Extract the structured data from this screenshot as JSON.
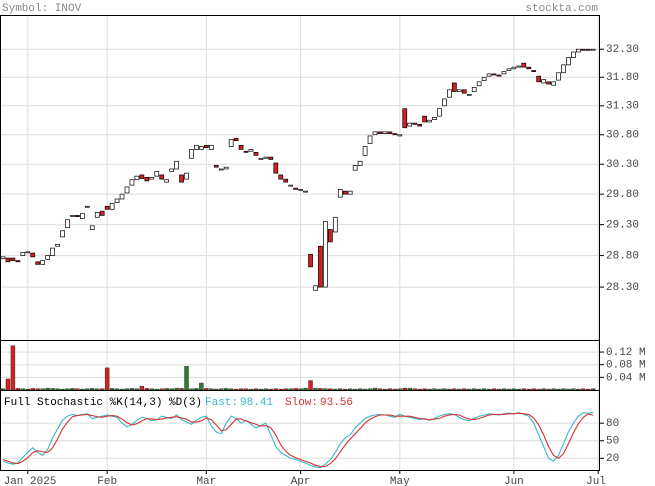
{
  "chart_data": [
    {
      "type": "candlestick",
      "title": "Symbol: INOV",
      "source": "stockta.com",
      "open": [
        28.75,
        28.76,
        28.76,
        28.72,
        28.8,
        28.85,
        28.84,
        28.7,
        28.66,
        28.74,
        28.8,
        28.95,
        29.1,
        29.25,
        29.45,
        29.45,
        29.4,
        29.6,
        29.22,
        29.42,
        29.52,
        29.6,
        29.55,
        29.66,
        29.72,
        29.82,
        29.95,
        30.04,
        30.12,
        30.08,
        30.05,
        30.1,
        30.12,
        30.0,
        30.18,
        30.22,
        30.12,
        30.05,
        30.4,
        30.55,
        30.55,
        30.62,
        30.55,
        30.28,
        30.22,
        30.22,
        30.6,
        30.74,
        30.62,
        30.52,
        30.52,
        30.5,
        30.38,
        30.4,
        30.42,
        30.32,
        30.12,
        30.05,
        29.95,
        29.9,
        29.88,
        29.85,
        28.82,
        28.25,
        28.95,
        28.3,
        29.22,
        29.18,
        29.75,
        29.85,
        29.8,
        30.2,
        30.28,
        30.45,
        30.65,
        30.8,
        30.85,
        30.82,
        30.85,
        30.82,
        30.78,
        31.25,
        30.95,
        31.0,
        30.98,
        31.12,
        31.02,
        31.06,
        31.12,
        31.3,
        31.45,
        31.7,
        31.55,
        31.58,
        31.5,
        31.55,
        31.65,
        31.74,
        31.82,
        31.86,
        31.84,
        31.86,
        31.92,
        31.95,
        31.98,
        32.05,
        31.98,
        31.92,
        31.82,
        31.7,
        31.72,
        31.66,
        31.75,
        31.88,
        32.02,
        32.15,
        32.25,
        32.3,
        32.3,
        32.3
      ],
      "close": [
        28.78,
        28.7,
        28.72,
        28.7,
        28.85,
        28.86,
        28.78,
        28.66,
        28.72,
        28.8,
        28.92,
        28.98,
        29.2,
        29.38,
        29.45,
        29.43,
        29.48,
        29.6,
        29.28,
        29.5,
        29.45,
        29.55,
        29.65,
        29.72,
        29.8,
        29.92,
        30.04,
        30.1,
        30.06,
        30.02,
        30.08,
        30.18,
        30.05,
        30.04,
        30.22,
        30.35,
        30.0,
        30.15,
        30.55,
        30.62,
        30.6,
        30.58,
        30.62,
        30.25,
        30.22,
        30.25,
        30.72,
        30.7,
        30.55,
        30.5,
        30.55,
        30.45,
        30.4,
        30.42,
        30.38,
        30.15,
        30.05,
        30.0,
        29.95,
        29.88,
        29.88,
        29.85,
        28.62,
        28.32,
        28.3,
        29.35,
        29.02,
        29.42,
        29.88,
        29.8,
        29.85,
        30.28,
        30.35,
        30.6,
        30.78,
        30.85,
        30.82,
        30.85,
        30.82,
        30.8,
        30.8,
        30.92,
        31.0,
        30.98,
        30.95,
        31.02,
        31.05,
        31.1,
        31.25,
        31.42,
        31.58,
        31.55,
        31.58,
        31.52,
        31.5,
        31.62,
        31.72,
        31.8,
        31.86,
        31.84,
        31.82,
        31.9,
        31.95,
        31.98,
        32.0,
        31.98,
        31.95,
        31.9,
        31.72,
        31.76,
        31.68,
        31.72,
        31.88,
        32.02,
        32.15,
        32.25,
        32.3,
        32.28,
        32.28,
        32.3
      ],
      "up_color": "#ffffff",
      "down_color": "#d42020",
      "log_scale": true,
      "grid": true,
      "ylim": [
        27.48,
        32.92
      ],
      "yticks": [
        {
          "value": 28.3,
          "label": "28.30"
        },
        {
          "value": 28.8,
          "label": "28.80"
        },
        {
          "value": 29.3,
          "label": "29.30"
        },
        {
          "value": 29.8,
          "label": "29.80"
        },
        {
          "value": 30.3,
          "label": "30.30"
        },
        {
          "value": 30.8,
          "label": "30.80"
        },
        {
          "value": 31.3,
          "label": "31.30"
        },
        {
          "value": 31.8,
          "label": "31.80"
        },
        {
          "value": 32.3,
          "label": "32.30"
        }
      ]
    },
    {
      "type": "bar",
      "up_color": "#2e7d32",
      "down_color": "#d42020",
      "grid": true,
      "values": [
        0.004,
        0.035,
        0.14,
        0.005,
        0.004,
        0.003,
        0.005,
        0.004,
        0.004,
        0.006,
        0.005,
        0.004,
        0.003,
        0.004,
        0.005,
        0.004,
        0.003,
        0.004,
        0.005,
        0.004,
        0.004,
        0.07,
        0.005,
        0.004,
        0.003,
        0.004,
        0.005,
        0.004,
        0.012,
        0.005,
        0.004,
        0.003,
        0.004,
        0.005,
        0.004,
        0.006,
        0.005,
        0.075,
        0.004,
        0.005,
        0.022,
        0.005,
        0.004,
        0.003,
        0.004,
        0.005,
        0.004,
        0.003,
        0.004,
        0.004,
        0.003,
        0.004,
        0.003,
        0.004,
        0.003,
        0.004,
        0.003,
        0.004,
        0.004,
        0.005,
        0.004,
        0.006,
        0.03,
        0.006,
        0.005,
        0.004,
        0.004,
        0.003,
        0.004,
        0.003,
        0.004,
        0.003,
        0.004,
        0.003,
        0.004,
        0.006,
        0.004,
        0.003,
        0.004,
        0.003,
        0.004,
        0.006,
        0.006,
        0.004,
        0.003,
        0.004,
        0.003,
        0.004,
        0.003,
        0.004,
        0.003,
        0.004,
        0.003,
        0.004,
        0.003,
        0.004,
        0.003,
        0.004,
        0.003,
        0.004,
        0.003,
        0.004,
        0.003,
        0.004,
        0.003,
        0.004,
        0.003,
        0.004,
        0.003,
        0.004,
        0.003,
        0.004,
        0.003,
        0.004,
        0.003,
        0.004,
        0.003,
        0.004,
        0.003,
        0.004
      ],
      "ylim": [
        0,
        0.155
      ],
      "yticks": [
        {
          "value": 0.04,
          "label": "0.04 M"
        },
        {
          "value": 0.08,
          "label": "0.08 M"
        },
        {
          "value": 0.12,
          "label": "0.12 M"
        }
      ]
    },
    {
      "type": "line",
      "title": "Full Stochastic %K(14,3) %D(3)",
      "grid": true,
      "series": [
        {
          "name": "Fast:",
          "color": "#35b8c8",
          "values": [
            15,
            12,
            10,
            12,
            22,
            30,
            38,
            30,
            25,
            35,
            55,
            70,
            85,
            92,
            95,
            93,
            95,
            96,
            88,
            90,
            92,
            94,
            92,
            90,
            80,
            74,
            78,
            85,
            90,
            88,
            84,
            86,
            92,
            90,
            88,
            94,
            86,
            82,
            78,
            85,
            90,
            92,
            75,
            65,
            62,
            80,
            92,
            88,
            80,
            85,
            78,
            72,
            76,
            80,
            60,
            40,
            30,
            25,
            20,
            18,
            15,
            12,
            8,
            5,
            4,
            10,
            18,
            30,
            45,
            55,
            60,
            72,
            80,
            88,
            92,
            94,
            95,
            94,
            92,
            90,
            95,
            92,
            90,
            88,
            86,
            88,
            85,
            88,
            92,
            95,
            96,
            95,
            90,
            86,
            84,
            88,
            92,
            94,
            96,
            95,
            94,
            96,
            97,
            96,
            98,
            95,
            92,
            80,
            60,
            40,
            20,
            15,
            25,
            45,
            65,
            80,
            92,
            98,
            97,
            98.41
          ]
        },
        {
          "name": "Slow:",
          "color": "#d83030",
          "values": [
            18,
            15,
            12,
            11,
            15,
            21,
            30,
            33,
            31,
            30,
            38,
            53,
            70,
            82,
            91,
            93,
            94,
            95,
            93,
            91,
            90,
            92,
            93,
            92,
            87,
            81,
            77,
            79,
            84,
            88,
            87,
            86,
            87,
            89,
            90,
            91,
            89,
            87,
            82,
            82,
            84,
            89,
            86,
            77,
            67,
            69,
            78,
            87,
            87,
            84,
            81,
            78,
            75,
            76,
            72,
            60,
            43,
            32,
            25,
            21,
            18,
            15,
            12,
            8,
            6,
            6,
            11,
            19,
            31,
            43,
            53,
            62,
            71,
            80,
            87,
            91,
            94,
            94,
            94,
            92,
            92,
            92,
            92,
            90,
            88,
            87,
            86,
            87,
            88,
            92,
            94,
            95,
            94,
            90,
            87,
            86,
            88,
            91,
            94,
            95,
            95,
            95,
            96,
            96,
            97,
            96,
            95,
            89,
            77,
            60,
            40,
            25,
            20,
            28,
            45,
            63,
            79,
            90,
            96,
            93.56
          ]
        }
      ],
      "ylim": [
        0,
        135
      ],
      "yticks": [
        20,
        50,
        80
      ],
      "xticks": [
        {
          "value": 5,
          "label": "Jan 2025"
        },
        {
          "value": 21,
          "label": "Feb"
        },
        {
          "value": 41,
          "label": "Mar"
        },
        {
          "value": 60,
          "label": "Apr"
        },
        {
          "value": 80,
          "label": "May"
        },
        {
          "value": 103,
          "label": "Jun"
        },
        {
          "value": 120,
          "label": "Jul"
        }
      ]
    }
  ]
}
